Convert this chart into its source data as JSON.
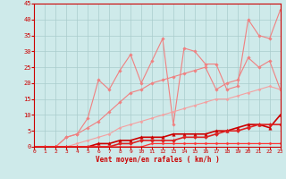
{
  "title": "",
  "xlabel": "Vent moyen/en rafales ( km/h )",
  "xlim": [
    0,
    23
  ],
  "ylim": [
    0,
    45
  ],
  "xticks": [
    0,
    1,
    2,
    3,
    4,
    5,
    6,
    7,
    8,
    9,
    10,
    11,
    12,
    13,
    14,
    15,
    16,
    17,
    18,
    19,
    20,
    21,
    22,
    23
  ],
  "yticks": [
    0,
    5,
    10,
    15,
    20,
    25,
    30,
    35,
    40,
    45
  ],
  "bg_color": "#ceeaea",
  "grid_color": "#aacccc",
  "series": [
    {
      "x": [
        0,
        1,
        2,
        3,
        4,
        5,
        6,
        7,
        8,
        9,
        10,
        11,
        12,
        13,
        14,
        15,
        16,
        17,
        18,
        19,
        20,
        21,
        22,
        23
      ],
      "y": [
        0,
        0,
        0,
        3,
        4,
        9,
        21,
        18,
        24,
        29,
        20,
        27,
        34,
        7,
        31,
        30,
        26,
        26,
        18,
        19,
        40,
        35,
        34,
        43
      ],
      "color": "#f08080",
      "lw": 0.8,
      "marker": "D",
      "ms": 1.8
    },
    {
      "x": [
        0,
        1,
        2,
        3,
        4,
        5,
        6,
        7,
        8,
        9,
        10,
        11,
        12,
        13,
        14,
        15,
        16,
        17,
        18,
        19,
        20,
        21,
        22,
        23
      ],
      "y": [
        0,
        0,
        0,
        3,
        4,
        6,
        8,
        11,
        14,
        17,
        18,
        20,
        21,
        22,
        23,
        24,
        25,
        18,
        20,
        21,
        28,
        25,
        27,
        18
      ],
      "color": "#f08080",
      "lw": 0.8,
      "marker": "D",
      "ms": 1.8
    },
    {
      "x": [
        0,
        1,
        2,
        3,
        4,
        5,
        6,
        7,
        8,
        9,
        10,
        11,
        12,
        13,
        14,
        15,
        16,
        17,
        18,
        19,
        20,
        21,
        22,
        23
      ],
      "y": [
        0,
        0,
        0,
        0,
        1,
        2,
        3,
        4,
        6,
        7,
        8,
        9,
        10,
        11,
        12,
        13,
        14,
        15,
        15,
        16,
        17,
        18,
        19,
        18
      ],
      "color": "#f4a0a0",
      "lw": 0.8,
      "marker": "D",
      "ms": 1.5
    },
    {
      "x": [
        0,
        1,
        2,
        3,
        4,
        5,
        6,
        7,
        8,
        9,
        10,
        11,
        12,
        13,
        14,
        15,
        16,
        17,
        18,
        19,
        20,
        21,
        22,
        23
      ],
      "y": [
        0,
        0,
        0,
        0,
        0,
        0,
        1,
        1,
        2,
        2,
        3,
        3,
        3,
        4,
        4,
        4,
        4,
        5,
        5,
        6,
        7,
        7,
        6,
        10
      ],
      "color": "#cc0000",
      "lw": 1.2,
      "marker": "^",
      "ms": 2.5
    },
    {
      "x": [
        0,
        1,
        2,
        3,
        4,
        5,
        6,
        7,
        8,
        9,
        10,
        11,
        12,
        13,
        14,
        15,
        16,
        17,
        18,
        19,
        20,
        21,
        22,
        23
      ],
      "y": [
        0,
        0,
        0,
        0,
        0,
        0,
        0,
        0,
        1,
        1,
        2,
        2,
        2,
        2,
        3,
        3,
        3,
        4,
        5,
        5,
        6,
        7,
        7,
        7
      ],
      "color": "#dd2222",
      "lw": 1.2,
      "marker": "D",
      "ms": 2.0
    },
    {
      "x": [
        0,
        1,
        2,
        3,
        4,
        5,
        6,
        7,
        8,
        9,
        10,
        11,
        12,
        13,
        14,
        15,
        16,
        17,
        18,
        19,
        20,
        21,
        22,
        23
      ],
      "y": [
        0,
        0,
        0,
        0,
        0,
        0,
        0,
        0,
        0,
        0,
        0,
        1,
        1,
        1,
        1,
        1,
        1,
        1,
        1,
        1,
        1,
        1,
        1,
        1
      ],
      "color": "#ff3333",
      "lw": 0.9,
      "marker": "D",
      "ms": 1.5
    }
  ]
}
